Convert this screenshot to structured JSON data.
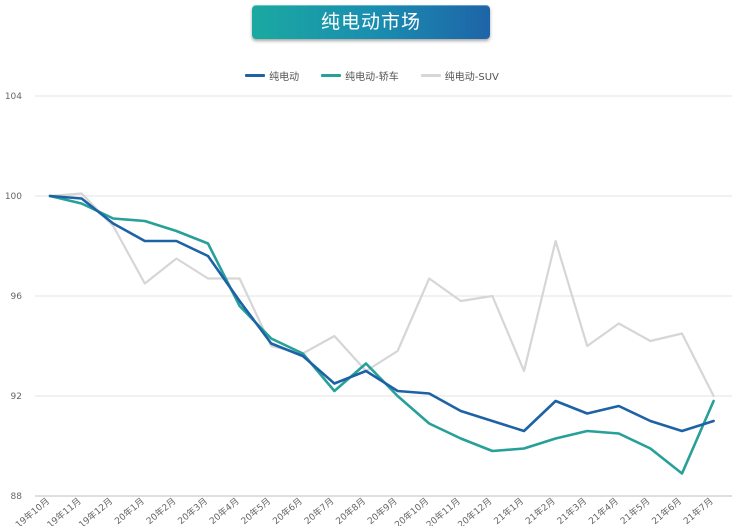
{
  "chart_data": {
    "type": "line",
    "title": "纯电动市场",
    "xlabel": "",
    "ylabel": "",
    "ylim": [
      88,
      104
    ],
    "yticks": [
      88,
      92,
      96,
      100,
      104
    ],
    "grid": true,
    "legend_position": "top-center",
    "categories": [
      "19年10月",
      "19年11月",
      "19年12月",
      "20年1月",
      "20年2月",
      "20年3月",
      "20年4月",
      "20年5月",
      "20年6月",
      "20年7月",
      "20年8月",
      "20年9月",
      "20年10月",
      "20年11月",
      "20年12月",
      "21年1月",
      "21年2月",
      "21年3月",
      "21年4月",
      "21年5月",
      "21年6月",
      "21年7月"
    ],
    "series": [
      {
        "name": "纯电动",
        "color": "#1d62a5",
        "values": [
          100.0,
          99.9,
          98.9,
          98.2,
          98.2,
          97.6,
          95.8,
          94.1,
          93.6,
          92.5,
          93.0,
          92.2,
          92.1,
          91.4,
          91.0,
          90.6,
          91.8,
          91.3,
          91.6,
          91.0,
          90.6,
          91.0
        ]
      },
      {
        "name": "纯电动-轿车",
        "color": "#26a098",
        "values": [
          100.0,
          99.7,
          99.1,
          99.0,
          98.6,
          98.1,
          95.6,
          94.3,
          93.7,
          92.2,
          93.3,
          92.0,
          90.9,
          90.3,
          89.8,
          89.9,
          90.3,
          90.6,
          90.5,
          89.9,
          88.9,
          91.8
        ]
      },
      {
        "name": "纯电动-SUV",
        "color": "#d6d6d6",
        "values": [
          100.0,
          100.1,
          98.8,
          96.5,
          97.5,
          96.7,
          96.7,
          94.0,
          93.7,
          94.4,
          93.0,
          93.8,
          96.7,
          95.8,
          96.0,
          93.0,
          98.2,
          94.0,
          94.9,
          94.2,
          94.5,
          92.0
        ]
      }
    ]
  }
}
